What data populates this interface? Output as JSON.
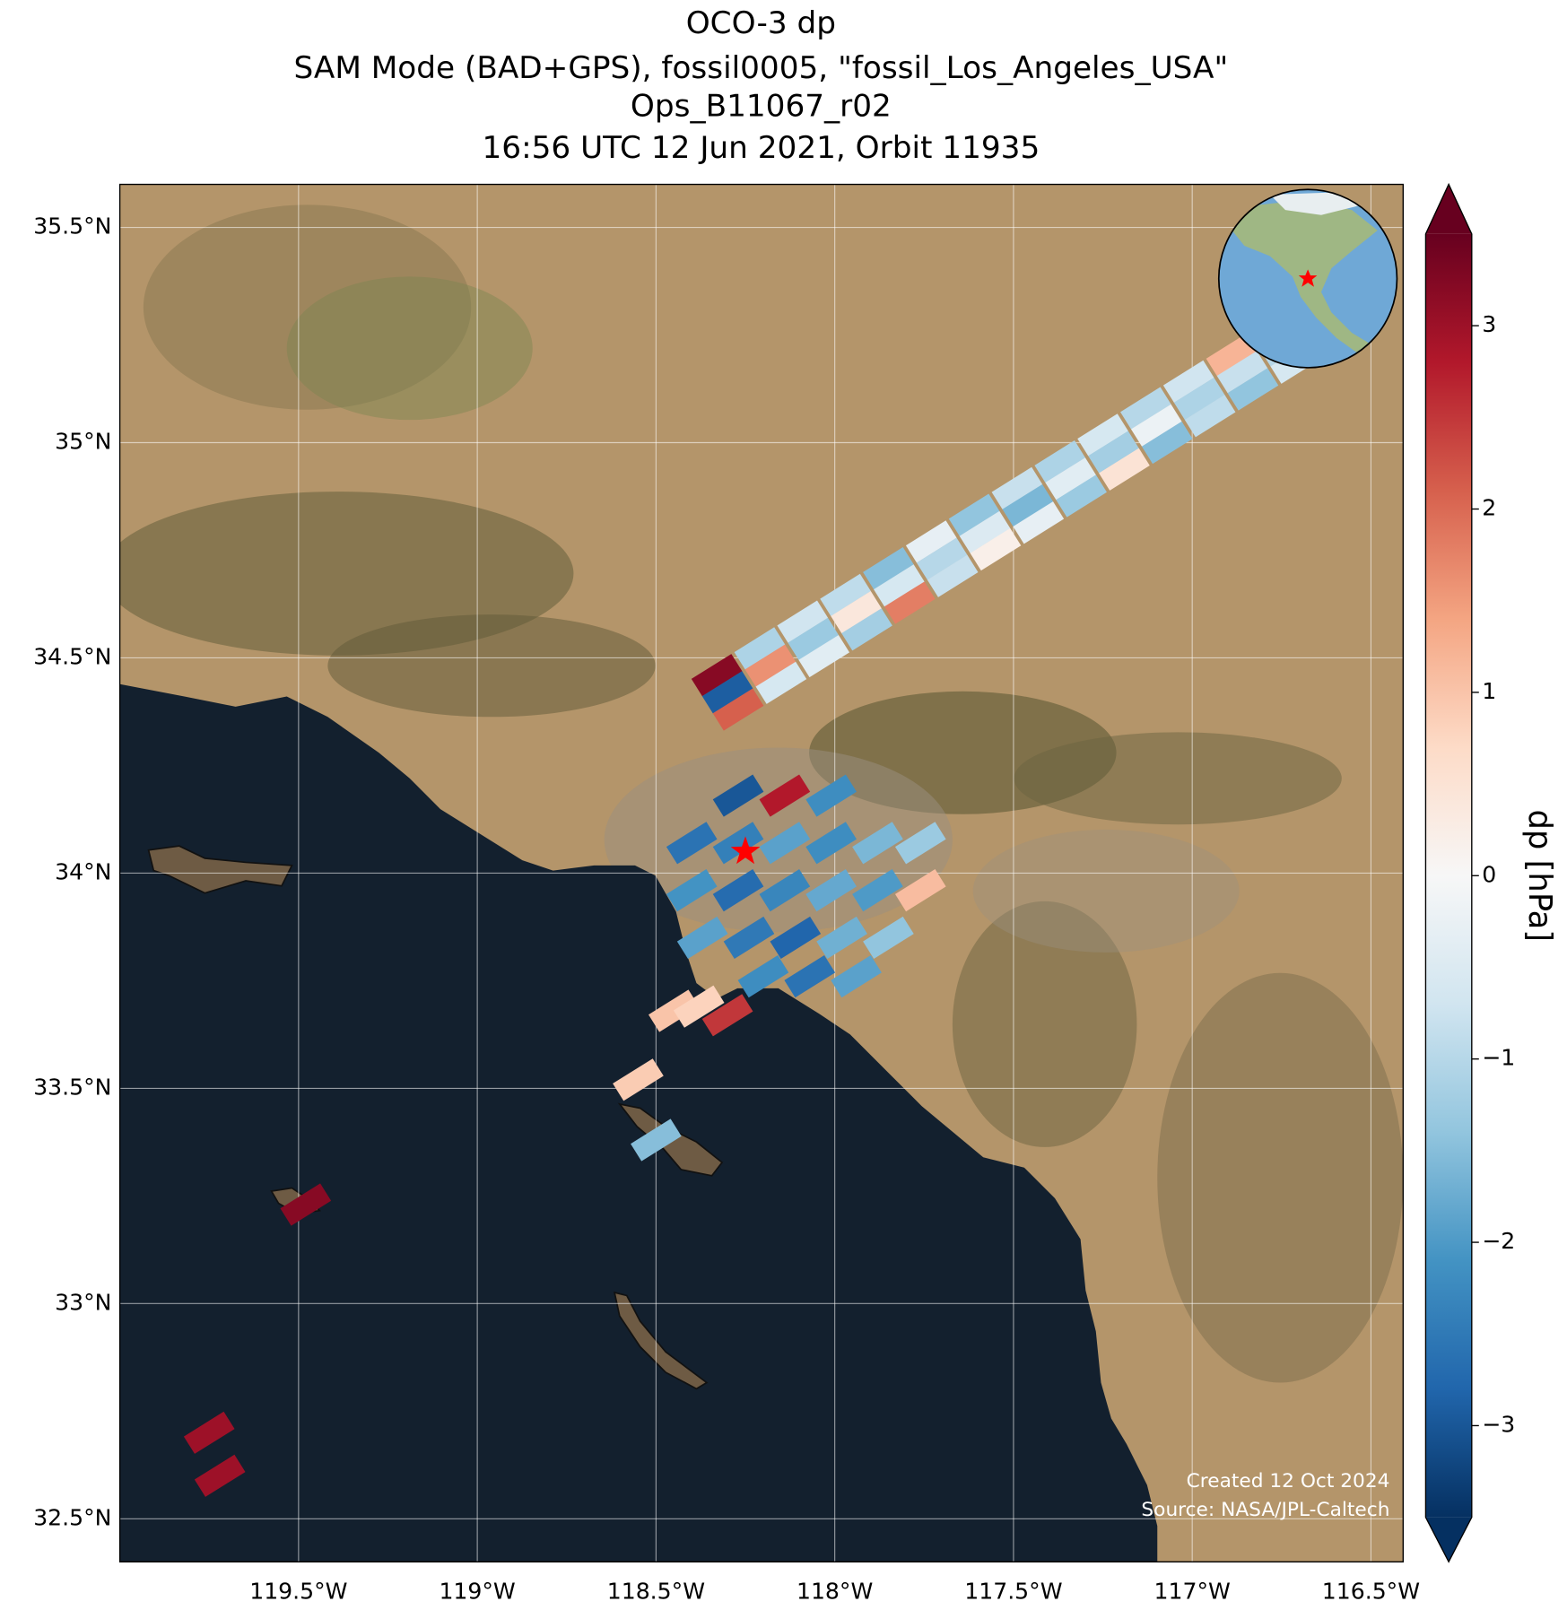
{
  "chart_data": {
    "type": "map",
    "title": [
      "OCO-3 dp",
      "SAM Mode (BAD+GPS), fossil0005, \"fossil_Los_Angeles_USA\"",
      "Ops_B11067_r02",
      "16:56 UTC 12 Jun 2021, Orbit 11935"
    ],
    "xlim": [
      -120,
      -116.41
    ],
    "ylim": [
      32.4,
      35.6
    ],
    "xticks": [
      {
        "value": -119.5,
        "label": "119.5°W"
      },
      {
        "value": -119,
        "label": "119°W"
      },
      {
        "value": -118.5,
        "label": "118.5°W"
      },
      {
        "value": -118,
        "label": "118°W"
      },
      {
        "value": -117.5,
        "label": "117.5°W"
      },
      {
        "value": -117,
        "label": "117°W"
      },
      {
        "value": -116.5,
        "label": "116.5°W"
      }
    ],
    "yticks": [
      {
        "value": 32.5,
        "label": "32.5°N"
      },
      {
        "value": 33,
        "label": "33°N"
      },
      {
        "value": 33.5,
        "label": "33.5°N"
      },
      {
        "value": 34,
        "label": "34°N"
      },
      {
        "value": 34.5,
        "label": "34.5°N"
      },
      {
        "value": 35,
        "label": "35°N"
      },
      {
        "value": 35.5,
        "label": "35.5°N"
      }
    ],
    "grid": true,
    "x": [
      -118.33,
      -118.3,
      -118.27,
      -118.21,
      -118.18,
      -118.15,
      -118.09,
      -118.06,
      -118.03,
      -117.97,
      -117.94,
      -117.91,
      -117.85,
      -117.82,
      -117.79,
      -117.73,
      -117.7,
      -117.67,
      -117.61,
      -117.58,
      -117.55,
      -117.49,
      -117.46,
      -117.43,
      -117.37,
      -117.34,
      -117.31,
      -117.25,
      -117.22,
      -117.19,
      -117.13,
      -117.1,
      -117.07,
      -117.01,
      -116.98,
      -116.95,
      -116.89,
      -116.86,
      -116.83,
      -116.77,
      -116.74,
      -116.71,
      -118.27,
      -118.14,
      -118.01,
      -118.4,
      -118.27,
      -118.14,
      -118.01,
      -117.88,
      -117.76,
      -118.4,
      -118.27,
      -118.14,
      -118.01,
      -117.88,
      -117.76,
      -118.37,
      -118.24,
      -118.11,
      -117.98,
      -117.85,
      -118.2,
      -118.07,
      -117.94,
      -118.45,
      -118.38,
      -118.3,
      -118.55,
      -118.5,
      -119.48,
      -119.75,
      -119.72
    ],
    "y": [
      34.46,
      34.42,
      34.38,
      34.522,
      34.482,
      34.442,
      34.584,
      34.544,
      34.504,
      34.646,
      34.606,
      34.566,
      34.708,
      34.668,
      34.628,
      34.77,
      34.73,
      34.69,
      34.832,
      34.792,
      34.752,
      34.894,
      34.854,
      34.814,
      34.956,
      34.916,
      34.876,
      35.018,
      34.978,
      34.938,
      35.08,
      35.04,
      35.0,
      35.142,
      35.102,
      35.062,
      35.204,
      35.164,
      35.124,
      35.266,
      35.226,
      35.186,
      34.18,
      34.18,
      34.18,
      34.07,
      34.07,
      34.07,
      34.07,
      34.07,
      34.07,
      33.96,
      33.96,
      33.96,
      33.96,
      33.96,
      33.96,
      33.85,
      33.85,
      33.85,
      33.85,
      33.85,
      33.76,
      33.76,
      33.76,
      33.68,
      33.69,
      33.67,
      33.52,
      33.38,
      33.23,
      32.7,
      32.6
    ],
    "values": [
      3.2,
      -2.9,
      2.1,
      -1.1,
      1.6,
      -0.6,
      -0.7,
      -1.3,
      -0.4,
      -0.9,
      0.4,
      -1.2,
      -1.5,
      -0.6,
      1.8,
      -0.3,
      -1.0,
      -0.8,
      -1.4,
      -0.5,
      0.2,
      -0.8,
      -1.6,
      -0.3,
      -1.1,
      -0.4,
      -1.3,
      -0.6,
      -1.2,
      0.5,
      -1.0,
      -0.2,
      -1.5,
      -0.7,
      -1.1,
      -0.9,
      1.2,
      -0.8,
      -1.4,
      -0.5,
      -1.0,
      -0.6,
      -3.0,
      2.8,
      -2.2,
      -2.6,
      -2.4,
      -1.9,
      -2.2,
      -1.6,
      -1.3,
      -2.1,
      -2.7,
      -2.3,
      -1.8,
      -2.0,
      1.1,
      -1.9,
      -2.5,
      -2.8,
      -1.7,
      -1.4,
      -2.2,
      -2.6,
      -1.9,
      1.0,
      0.8,
      2.5,
      0.9,
      -1.5,
      3.2,
      3.0,
      3.0
    ],
    "target": {
      "x": -118.25,
      "y": 34.05,
      "color": "#ff0000"
    },
    "colormap": [
      "#053061",
      "#2166ac",
      "#4393c3",
      "#92c5de",
      "#d1e5f0",
      "#f7f7f7",
      "#fddbc7",
      "#f4a582",
      "#d6604d",
      "#b2182b",
      "#67001f"
    ],
    "clim": [
      -3.5,
      3.5
    ],
    "cticks": [
      {
        "value": -3,
        "label": "−3"
      },
      {
        "value": -2,
        "label": "−2"
      },
      {
        "value": -1,
        "label": "−1"
      },
      0,
      1,
      2,
      3
    ],
    "colorbar_label": "dp [hPa]",
    "annotations": [
      "Created 12 Oct 2024",
      "Source: NASA/JPL-Caltech"
    ]
  }
}
